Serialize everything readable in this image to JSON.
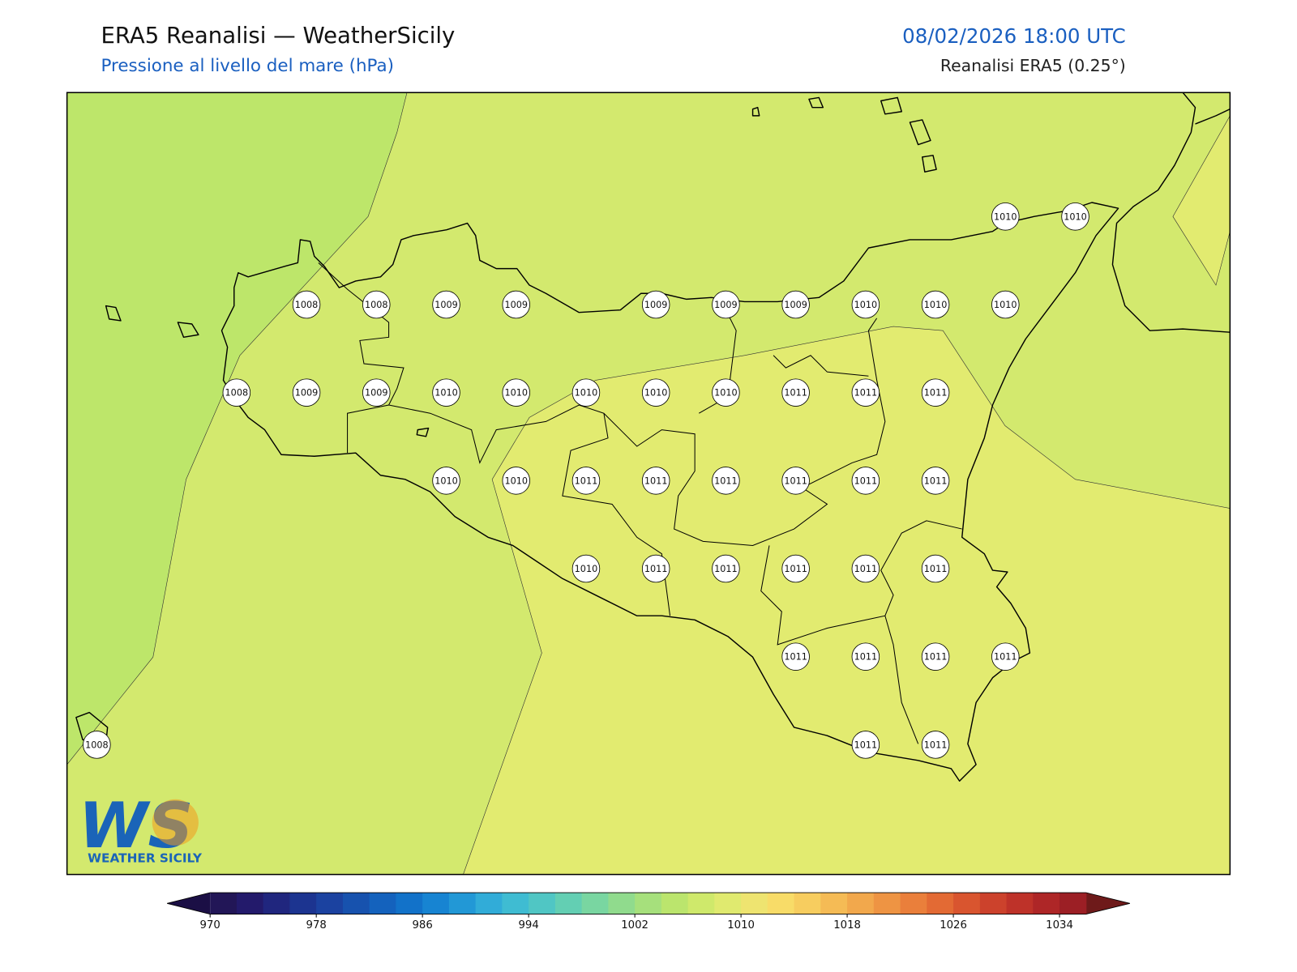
{
  "header": {
    "title": "ERA5 Reanalisi — WeatherSicily",
    "subtitle": "Pressione al livello del mare (hPa)",
    "date": "08/02/2026 18:00 UTC",
    "source": "Reanalisi ERA5 (0.25°)"
  },
  "map": {
    "colors": {
      "sea": "#d3e96e",
      "low": "#bde66a",
      "high": "#e2eb70"
    },
    "labels": {
      "rows": [
        [
          null,
          null,
          null,
          null,
          null,
          null,
          null,
          null,
          null,
          null,
          null,
          null,
          null,
          1010,
          1010
        ],
        [
          null,
          null,
          null,
          1008,
          1008,
          1009,
          1009,
          null,
          1009,
          1009,
          1009,
          1010,
          1010,
          1010,
          null
        ],
        [
          null,
          null,
          1008,
          1009,
          1009,
          1010,
          1010,
          1010,
          1010,
          1010,
          1011,
          1011,
          1011,
          null,
          null
        ],
        [
          null,
          null,
          null,
          null,
          null,
          1010,
          1010,
          1011,
          1011,
          1011,
          1011,
          1011,
          1011,
          null,
          null
        ],
        [
          null,
          null,
          null,
          null,
          null,
          null,
          null,
          1010,
          1011,
          1011,
          1011,
          1011,
          1011,
          null,
          null
        ],
        [
          null,
          null,
          null,
          null,
          null,
          null,
          null,
          null,
          null,
          null,
          1011,
          1011,
          1011,
          1011,
          null
        ],
        [
          1008,
          null,
          null,
          null,
          null,
          null,
          null,
          null,
          null,
          null,
          null,
          1011,
          1011,
          null,
          null
        ]
      ]
    }
  },
  "colorbar": {
    "lim": [
      970,
      1036
    ],
    "ticks": [
      970,
      978,
      986,
      994,
      1002,
      1010,
      1018,
      1026,
      1034
    ],
    "under": "#1b0f45",
    "over": "#6e1a1a",
    "colors": [
      "#221657",
      "#231a6b",
      "#20267e",
      "#1c3490",
      "#1b42a0",
      "#1752ae",
      "#1462bd",
      "#1272c9",
      "#1784d2",
      "#2298d6",
      "#31acd8",
      "#3fbcd2",
      "#50c6c4",
      "#63cfb3",
      "#79d6a1",
      "#90db8d",
      "#a6e07c",
      "#bbe56d",
      "#cfe96b",
      "#e0ea6f",
      "#eee470",
      "#f8dc68",
      "#f7cd5f",
      "#f5bb55",
      "#f2a84c",
      "#ee9443",
      "#ea7f3b",
      "#e36a34",
      "#d9552f",
      "#cc422c",
      "#be3229",
      "#ae2627",
      "#9c1f25"
    ]
  },
  "logo": {
    "mark": "WS",
    "caption": "WEATHER SICILY"
  }
}
